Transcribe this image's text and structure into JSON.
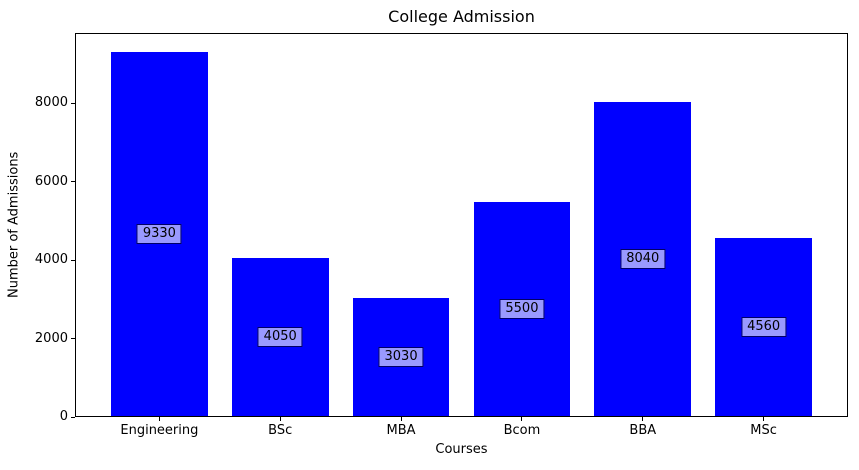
{
  "chart_data": {
    "type": "bar",
    "categories": [
      "Engineering",
      "BSc",
      "MBA",
      "Bcom",
      "BBA",
      "MSc"
    ],
    "values": [
      9330,
      4050,
      3030,
      5500,
      8040,
      4560
    ],
    "title": "College Admission",
    "xlabel": "Courses",
    "ylabel": "Number of Admissions",
    "ylim": [
      0,
      9796
    ],
    "yticks": [
      0,
      2000,
      4000,
      6000,
      8000
    ],
    "grid": false,
    "legend": "none",
    "bar_color": "#0000ff",
    "value_label_fill": "#9999ff",
    "value_label_border": "#000066",
    "text_color": "#000000"
  }
}
